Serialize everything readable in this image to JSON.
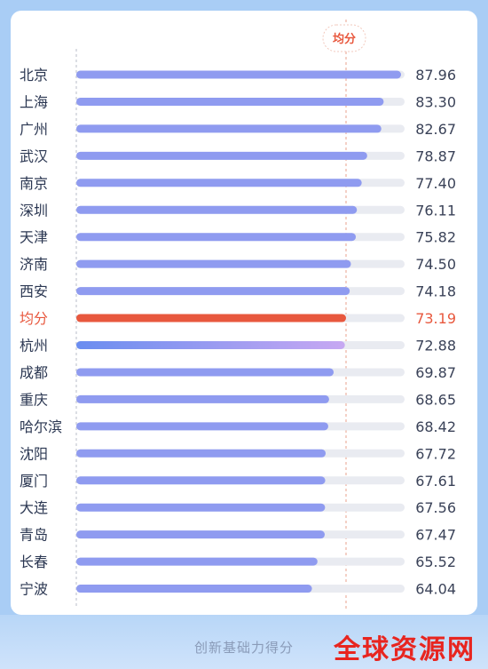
{
  "chart_data": {
    "type": "bar",
    "orientation": "horizontal",
    "title": "创新基础力得分",
    "average_label": "均分",
    "average_value": 73.19,
    "categories": [
      "北京",
      "上海",
      "广州",
      "武汉",
      "南京",
      "深圳",
      "天津",
      "济南",
      "西安",
      "均分",
      "杭州",
      "成都",
      "重庆",
      "哈尔滨",
      "沈阳",
      "厦门",
      "大连",
      "青岛",
      "长春",
      "宁波"
    ],
    "values": [
      87.96,
      83.3,
      82.67,
      78.87,
      77.4,
      76.11,
      75.82,
      74.5,
      74.18,
      73.19,
      72.88,
      69.87,
      68.65,
      68.42,
      67.72,
      67.61,
      67.56,
      67.47,
      65.52,
      64.04
    ],
    "value_labels": [
      "87.96",
      "83.30",
      "82.67",
      "78.87",
      "77.40",
      "76.11",
      "75.82",
      "74.50",
      "74.18",
      "73.19",
      "72.88",
      "69.87",
      "68.65",
      "68.42",
      "67.72",
      "67.61",
      "67.56",
      "67.47",
      "65.52",
      "64.04"
    ],
    "colors": {
      "bar": "#8f9bf0",
      "average_bar": "#e8583e",
      "highlight_start": "#6a8df0",
      "highlight_end": "#c7a8f2",
      "track": "#e9ebf1"
    }
  },
  "watermark": "全球资源网"
}
